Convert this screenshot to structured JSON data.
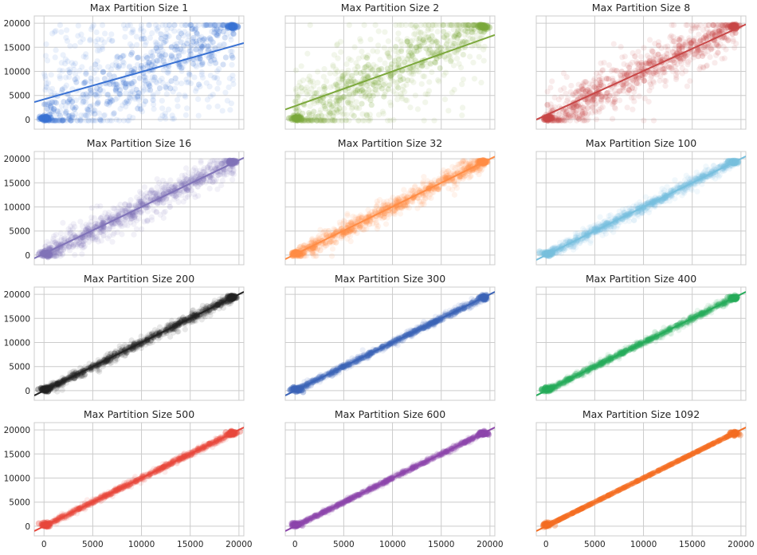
{
  "chart_data": {
    "type": "scatter",
    "layout": "4x3 grid, shared x and y axes",
    "xlim": [
      -1000,
      20500
    ],
    "ylim": [
      -2000,
      21500
    ],
    "xticks": [
      0,
      5000,
      10000,
      15000,
      20000
    ],
    "yticks": [
      0,
      5000,
      10000,
      15000,
      20000
    ],
    "grid": true,
    "xtick_labels": [
      "0",
      "5000",
      "10000",
      "15000",
      "20000"
    ],
    "ytick_labels": [
      "0",
      "5000",
      "10000",
      "15000",
      "20000"
    ],
    "panels": [
      {
        "title": "Max Partition Size 1",
        "color": "#3a72d3",
        "fit": {
          "slope": 0.57,
          "intercept": 4200
        },
        "spread": 9000
      },
      {
        "title": "Max Partition Size 2",
        "color": "#7ca83c",
        "fit": {
          "slope": 0.72,
          "intercept": 2800
        },
        "spread": 7000
      },
      {
        "title": "Max Partition Size 8",
        "color": "#c84848",
        "fit": {
          "slope": 0.92,
          "intercept": 900
        },
        "spread": 3800
      },
      {
        "title": "Max Partition Size 16",
        "color": "#8073b8",
        "fit": {
          "slope": 0.97,
          "intercept": 300
        },
        "spread": 2200
      },
      {
        "title": "Max Partition Size 32",
        "color": "#ff8c45",
        "fit": {
          "slope": 0.99,
          "intercept": 150
        },
        "spread": 1500
      },
      {
        "title": "Max Partition Size 100",
        "color": "#77bfdd",
        "fit": {
          "slope": 1.0,
          "intercept": 0
        },
        "spread": 900
      },
      {
        "title": "Max Partition Size 200",
        "color": "#222222",
        "fit": {
          "slope": 1.0,
          "intercept": 0
        },
        "spread": 700
      },
      {
        "title": "Max Partition Size 300",
        "color": "#3b63b6",
        "fit": {
          "slope": 1.0,
          "intercept": 0
        },
        "spread": 450
      },
      {
        "title": "Max Partition Size 400",
        "color": "#25ab5a",
        "fit": {
          "slope": 1.0,
          "intercept": 0
        },
        "spread": 450
      },
      {
        "title": "Max Partition Size 500",
        "color": "#e8473c",
        "fit": {
          "slope": 1.0,
          "intercept": 0
        },
        "spread": 400
      },
      {
        "title": "Max Partition Size 600",
        "color": "#8d45ab",
        "fit": {
          "slope": 1.0,
          "intercept": 0
        },
        "spread": 300
      },
      {
        "title": "Max Partition Size 1092",
        "color": "#f46d22",
        "fit": {
          "slope": 1.0,
          "intercept": 0
        },
        "spread": 40
      }
    ]
  }
}
